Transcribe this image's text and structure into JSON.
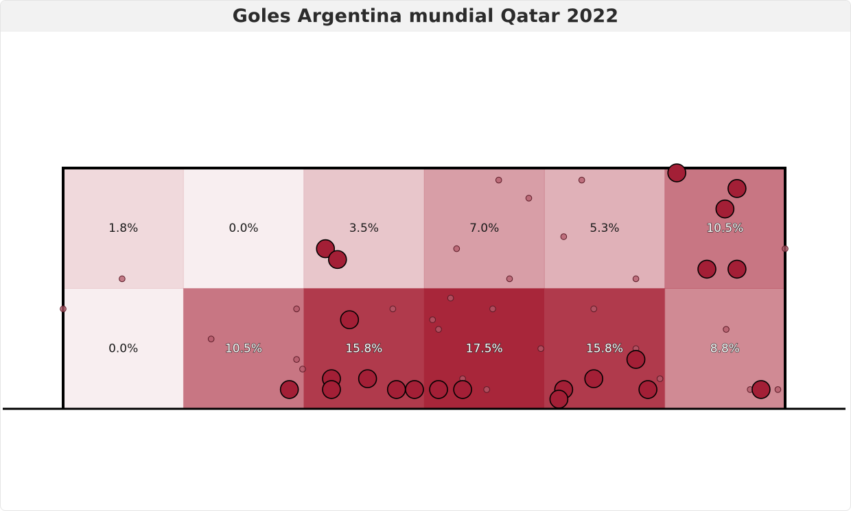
{
  "window": {
    "title": "Goles Argentina mundial Qatar 2022"
  },
  "colors": {
    "heat": "#a8263a",
    "goal": "#a31f36",
    "miss": "#b35a6a",
    "frame": "#000000"
  },
  "chart_data": {
    "type": "heatmap",
    "title": "Goles Argentina mundial Qatar 2022",
    "xlim": [
      0,
      6
    ],
    "ylim": [
      0,
      2
    ],
    "rows": 2,
    "cols": 6,
    "grid": false,
    "cells": [
      {
        "row": 0,
        "col": 0,
        "value": 1.8,
        "label": "1.8%"
      },
      {
        "row": 0,
        "col": 1,
        "value": 0.0,
        "label": "0.0%"
      },
      {
        "row": 0,
        "col": 2,
        "value": 3.5,
        "label": "3.5%"
      },
      {
        "row": 0,
        "col": 3,
        "value": 7.0,
        "label": "7.0%"
      },
      {
        "row": 0,
        "col": 4,
        "value": 5.3,
        "label": "5.3%"
      },
      {
        "row": 0,
        "col": 5,
        "value": 10.5,
        "label": "10.5%"
      },
      {
        "row": 1,
        "col": 0,
        "value": 0.0,
        "label": "0.0%"
      },
      {
        "row": 1,
        "col": 1,
        "value": 10.5,
        "label": "10.5%"
      },
      {
        "row": 1,
        "col": 2,
        "value": 15.8,
        "label": "15.8%"
      },
      {
        "row": 1,
        "col": 3,
        "value": 17.5,
        "label": "17.5%"
      },
      {
        "row": 1,
        "col": 4,
        "value": 15.8,
        "label": "15.8%"
      },
      {
        "row": 1,
        "col": 5,
        "value": 8.8,
        "label": "8.8%"
      }
    ],
    "goals": [
      [
        5.1,
        1.96
      ],
      [
        5.6,
        1.83
      ],
      [
        5.5,
        1.66
      ],
      [
        5.35,
        1.16
      ],
      [
        5.6,
        1.16
      ],
      [
        2.18,
        1.33
      ],
      [
        2.28,
        1.24
      ],
      [
        2.38,
        0.74
      ],
      [
        2.23,
        0.25
      ],
      [
        2.53,
        0.25
      ],
      [
        2.23,
        0.16
      ],
      [
        1.88,
        0.16
      ],
      [
        2.77,
        0.16
      ],
      [
        2.92,
        0.16
      ],
      [
        3.12,
        0.16
      ],
      [
        3.32,
        0.16
      ],
      [
        4.16,
        0.16
      ],
      [
        4.12,
        0.08
      ],
      [
        4.41,
        0.25
      ],
      [
        4.76,
        0.41
      ],
      [
        4.86,
        0.16
      ],
      [
        5.8,
        0.16
      ]
    ],
    "misses": [
      [
        3.62,
        1.9
      ],
      [
        3.87,
        1.75
      ],
      [
        4.31,
        1.9
      ],
      [
        3.27,
        1.33
      ],
      [
        4.16,
        1.43
      ],
      [
        0.49,
        1.08
      ],
      [
        3.71,
        1.08
      ],
      [
        4.76,
        1.08
      ],
      [
        6.0,
        1.33
      ],
      [
        0.0,
        0.83
      ],
      [
        1.94,
        0.83
      ],
      [
        2.74,
        0.83
      ],
      [
        3.22,
        0.92
      ],
      [
        3.57,
        0.83
      ],
      [
        4.41,
        0.83
      ],
      [
        1.23,
        0.58
      ],
      [
        3.07,
        0.74
      ],
      [
        3.12,
        0.66
      ],
      [
        3.97,
        0.5
      ],
      [
        4.76,
        0.5
      ],
      [
        5.51,
        0.66
      ],
      [
        1.94,
        0.41
      ],
      [
        1.99,
        0.33
      ],
      [
        3.32,
        0.25
      ],
      [
        3.52,
        0.16
      ],
      [
        4.96,
        0.25
      ],
      [
        5.71,
        0.16
      ],
      [
        5.94,
        0.16
      ]
    ]
  }
}
